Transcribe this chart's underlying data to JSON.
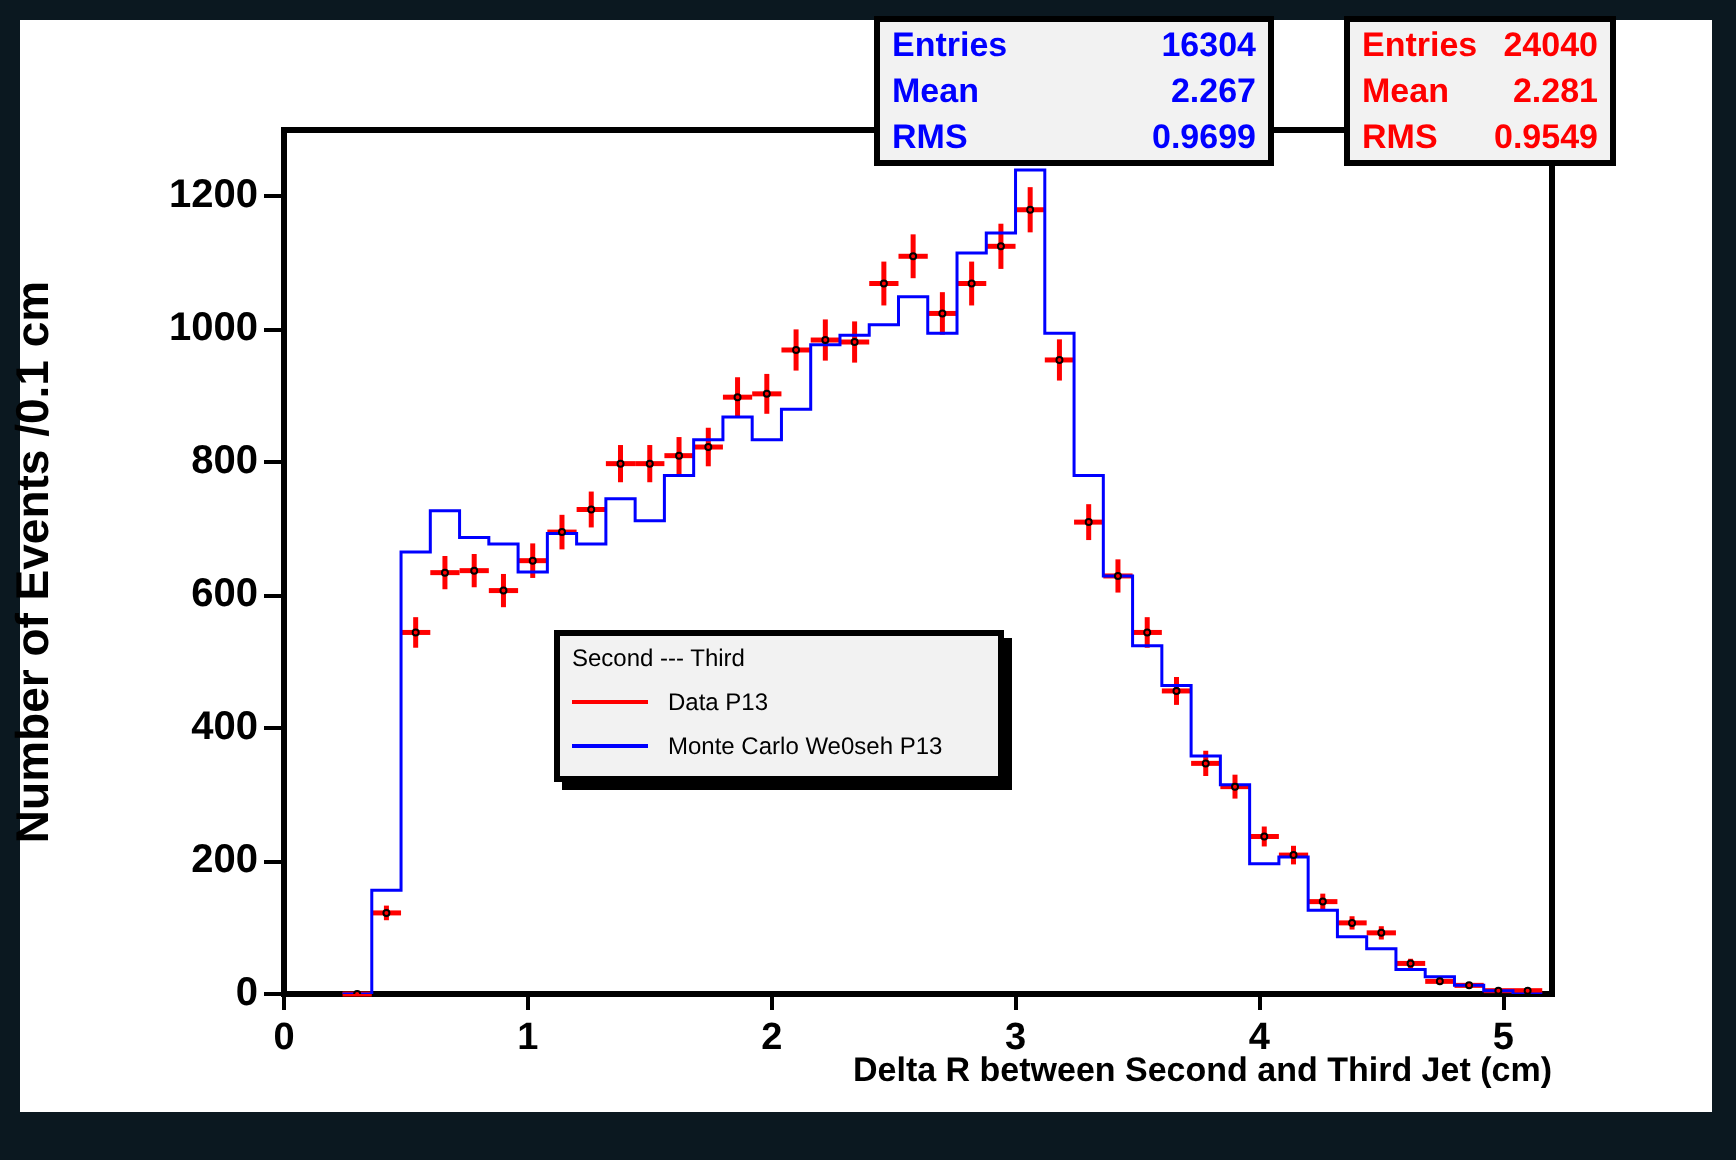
{
  "chart_data": {
    "type": "histogram",
    "xlabel": "Delta R between Second and Third Jet (cm)",
    "ylabel": "Number of Events /0.1 cm",
    "legend_title": "Second --- Third",
    "legend": "left",
    "grid": false,
    "xlim": [
      0,
      5.2
    ],
    "xticks": [
      0,
      1,
      2,
      3,
      4,
      5
    ],
    "ylim": [
      0,
      1300
    ],
    "yticks": [
      0,
      200,
      400,
      600,
      800,
      1000,
      1200
    ],
    "bins": [
      0.24,
      0.36,
      0.48,
      0.6,
      0.72,
      0.84,
      0.96,
      1.08,
      1.2,
      1.32,
      1.44,
      1.56,
      1.68,
      1.8,
      1.92,
      2.04,
      2.16,
      2.28,
      2.4,
      2.52,
      2.64,
      2.76,
      2.88,
      3.0,
      3.12,
      3.24,
      3.36,
      3.48,
      3.6,
      3.72,
      3.84,
      3.96,
      4.08,
      4.2,
      4.32,
      4.44,
      4.56,
      4.68,
      4.8,
      4.92,
      5.04,
      5.16
    ],
    "series": [
      {
        "name": "Data P13",
        "type": "scatter",
        "color": "#ff0000",
        "marker": "circle",
        "x": [
          0.3,
          0.42,
          0.54,
          0.66,
          0.78,
          0.9,
          1.02,
          1.14,
          1.26,
          1.38,
          1.5,
          1.62,
          1.74,
          1.86,
          1.98,
          2.1,
          2.22,
          2.34,
          2.46,
          2.58,
          2.7,
          2.82,
          2.94,
          3.06,
          3.18,
          3.3,
          3.42,
          3.54,
          3.66,
          3.78,
          3.9,
          4.02,
          4.14,
          4.26,
          4.38,
          4.5,
          4.62,
          4.74,
          4.86,
          4.98,
          5.1
        ],
        "values": [
          0,
          122,
          544,
          634,
          637,
          607,
          652,
          695,
          729,
          798,
          798,
          810,
          823,
          898,
          903,
          969,
          984,
          981,
          1069,
          1110,
          1024,
          1069,
          1125,
          1180,
          954,
          710,
          629,
          544,
          456,
          347,
          312,
          237,
          209,
          139,
          107,
          92,
          46,
          19,
          13,
          5,
          5
        ],
        "errors": [
          null,
          11,
          23,
          25,
          25,
          25,
          26,
          26,
          27,
          28,
          28,
          28,
          29,
          30,
          30,
          31,
          31,
          31,
          33,
          33,
          32,
          33,
          34,
          34,
          31,
          27,
          25,
          23,
          21,
          19,
          18,
          15,
          14,
          12,
          10,
          10,
          7,
          4,
          4,
          2,
          2
        ],
        "xerrors": [
          0.06,
          0.06,
          0.06,
          0.06,
          0.06,
          0.06,
          0.06,
          0.06,
          0.06,
          0.06,
          0.06,
          0.06,
          0.06,
          0.06,
          0.06,
          0.06,
          0.06,
          0.06,
          0.06,
          0.06,
          0.06,
          0.06,
          0.06,
          0.06,
          0.06,
          0.06,
          0.06,
          0.06,
          0.06,
          0.06,
          0.06,
          0.06,
          0.06,
          0.06,
          0.06,
          0.06,
          0.06,
          0.06,
          0.06,
          0.06,
          0.06
        ]
      },
      {
        "name": "Monte Carlo We0seh P13",
        "type": "histogram",
        "color": "#0000ff",
        "values": [
          0,
          156,
          665,
          727,
          687,
          677,
          635,
          693,
          677,
          745,
          712,
          780,
          834,
          868,
          834,
          880,
          977,
          991,
          1007,
          1049,
          994,
          1115,
          1145,
          1240,
          994,
          780,
          629,
          524,
          464,
          358,
          315,
          196,
          206,
          126,
          86,
          68,
          37,
          26,
          13,
          5,
          0
        ]
      }
    ],
    "annotations": [
      "Entries 16304",
      "Mean 2.267",
      "RMS 0.9699",
      "Entries 24040",
      "Mean 2.281",
      "RMS 0.9549"
    ]
  }
}
